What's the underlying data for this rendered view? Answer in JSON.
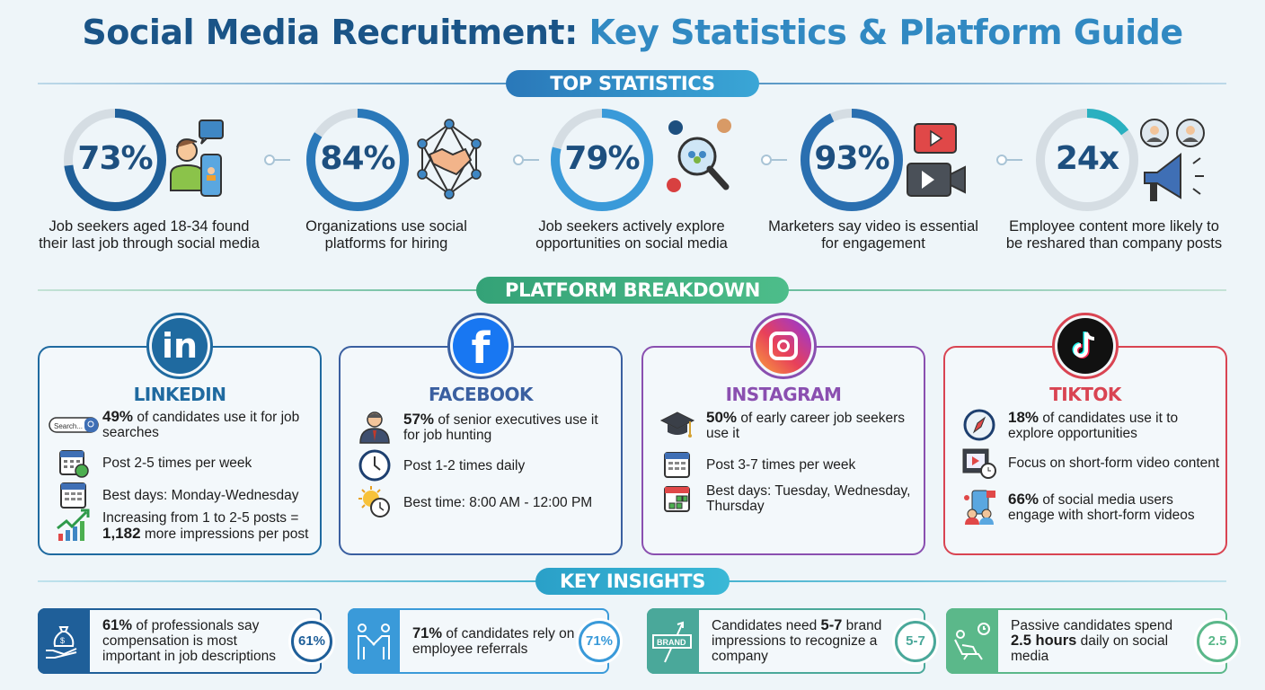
{
  "title": {
    "part1": "Social Media Recruitment:",
    "part2": "Key Statistics & Platform Guide"
  },
  "sections": {
    "top": "TOP STATISTICS",
    "platform": "PLATFORM BREAKDOWN",
    "insights": "KEY INSIGHTS"
  },
  "colors": {
    "dark_blue": "#1a5487",
    "blue": "#3189c2",
    "green": "#3aa67a",
    "teal": "#2aa7c9",
    "linkedin": "#1f6aa0",
    "facebook": "#1877f2",
    "instagram": "#8a4fb0",
    "tiktok": "#d94452"
  },
  "stats": [
    {
      "value": "73%",
      "ring_fill": 73,
      "icon": "person-phone-icon",
      "desc": "Job seekers aged 18-34 found their last job through social media"
    },
    {
      "value": "84%",
      "ring_fill": 84,
      "icon": "handshake-network-icon",
      "desc": "Organizations use social platforms for hiring"
    },
    {
      "value": "79%",
      "ring_fill": 79,
      "icon": "search-social-icon",
      "desc": "Job seekers actively explore opportunities on social media"
    },
    {
      "value": "93%",
      "ring_fill": 93,
      "icon": "video-icon",
      "desc": "Marketers say video is essential for engagement"
    },
    {
      "value": "24x",
      "ring_fill": 15,
      "icon": "megaphone-employees-icon",
      "desc": "Employee content more likely to be reshared than company posts"
    }
  ],
  "platforms": [
    {
      "name": "LINKEDIN",
      "color": "#1f6aa0",
      "items": [
        {
          "icon": "search-bar-icon",
          "icon_text": "Search...",
          "bold": "49%",
          "text": " of candidates use it for job searches"
        },
        {
          "icon": "calendar-check-icon",
          "bold": "",
          "text": "Post 2-5 times per week"
        },
        {
          "icon": "calendar-icon",
          "bold": "",
          "text": "Best days: Monday-Wednesday"
        },
        {
          "icon": "growth-chart-icon",
          "pre": "Increasing from 1 to 2-5 posts = ",
          "bold": "1,182",
          "text": " more impressions per post"
        }
      ]
    },
    {
      "name": "FACEBOOK",
      "color": "#3a5fa0",
      "items": [
        {
          "icon": "executive-icon",
          "bold": "57%",
          "text": " of senior executives use it for job hunting"
        },
        {
          "icon": "clock-icon",
          "bold": "",
          "text": "Post 1-2 times daily"
        },
        {
          "icon": "sun-clock-icon",
          "bold": "",
          "text": "Best time: 8:00 AM - 12:00 PM"
        }
      ]
    },
    {
      "name": "INSTAGRAM",
      "color": "#8a4fb0",
      "items": [
        {
          "icon": "graduation-cap-icon",
          "bold": "50%",
          "text": " of early career job seekers use it"
        },
        {
          "icon": "calendar-icon",
          "bold": "",
          "text": "Post 3-7 times per week"
        },
        {
          "icon": "calendar-days-icon",
          "bold": "",
          "text": "Best days: Tuesday, Wednesday, Thursday"
        }
      ]
    },
    {
      "name": "TIKTOK",
      "color": "#d94452",
      "items": [
        {
          "icon": "compass-icon",
          "bold": "18%",
          "text": " of candidates use it to explore opportunities"
        },
        {
          "icon": "video-timer-icon",
          "bold": "",
          "text": "Focus on short-form video content"
        },
        {
          "icon": "phone-users-icon",
          "bold": "66%",
          "text": " of social media users engage with short-form videos"
        }
      ]
    }
  ],
  "insights": [
    {
      "icon": "money-bag-hand-icon",
      "color": "#1f5f99",
      "bold": "61%",
      "text": " of professionals say compensation is most important in job descriptions",
      "badge": "61%"
    },
    {
      "icon": "handshake-people-icon",
      "color": "#3a9ad9",
      "bold": "71%",
      "text": " of candidates rely on employee referrals",
      "badge": "71%"
    },
    {
      "icon": "brand-sign-icon",
      "color": "#4aa89a",
      "icon_text": "BRAND",
      "pre": "Candidates need ",
      "bold": "5-7",
      "text": " brand impressions to recognize a company",
      "badge": "5-7"
    },
    {
      "icon": "relaxing-person-icon",
      "color": "#5bb88a",
      "pre": "Passive candidates spend ",
      "bold": "2.5 hours",
      "text": " daily on social media",
      "badge": "2.5"
    }
  ]
}
